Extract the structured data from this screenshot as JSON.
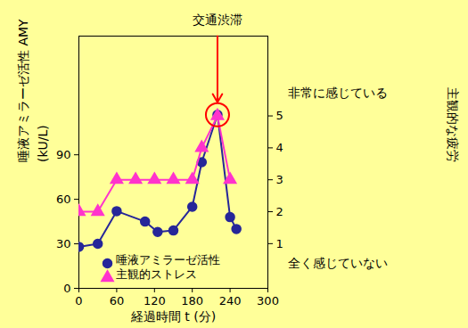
{
  "chart_data": {
    "type": "line",
    "x_label": "経過時間 t (分)",
    "y_label": [
      "唾液アミラーゼ活性 AMY",
      "(kU/L)"
    ],
    "y2_label": "主観的な疲労",
    "xlim": [
      0,
      300
    ],
    "xticks": [
      0,
      60,
      120,
      180,
      240,
      300
    ],
    "ylim": [
      0,
      170
    ],
    "yticks": [
      0,
      30,
      60,
      90
    ],
    "y2lim": [
      -0.4,
      7.5
    ],
    "y2ticks": [
      1,
      2,
      3,
      4,
      5
    ],
    "y2_tick_notes": [
      {
        "value": 5,
        "text": "非常に感じている"
      },
      {
        "value": 1,
        "text": "全く感じていない"
      }
    ],
    "legend": "bottom-left",
    "series": [
      {
        "name": "唾液アミラーゼ活性",
        "color": "#262699",
        "marker": "circle",
        "x": [
          0,
          30,
          60,
          105,
          125,
          150,
          180,
          195,
          220,
          240,
          250
        ],
        "values": [
          28,
          30,
          52,
          45,
          38,
          39,
          55,
          85,
          117,
          48,
          40
        ]
      },
      {
        "name": "主観的ストレス",
        "color": "#ff33cc",
        "marker": "triangle",
        "axis": "y2",
        "x": [
          0,
          30,
          60,
          90,
          120,
          150,
          180,
          195,
          220,
          240
        ],
        "values": [
          2,
          2,
          3,
          3,
          3,
          3,
          3,
          4,
          5,
          3
        ]
      }
    ],
    "annotations": [
      {
        "text": "交通渋滞",
        "x": 220,
        "series": "唾液アミラーゼ活性",
        "color": "#ff0000"
      }
    ]
  }
}
